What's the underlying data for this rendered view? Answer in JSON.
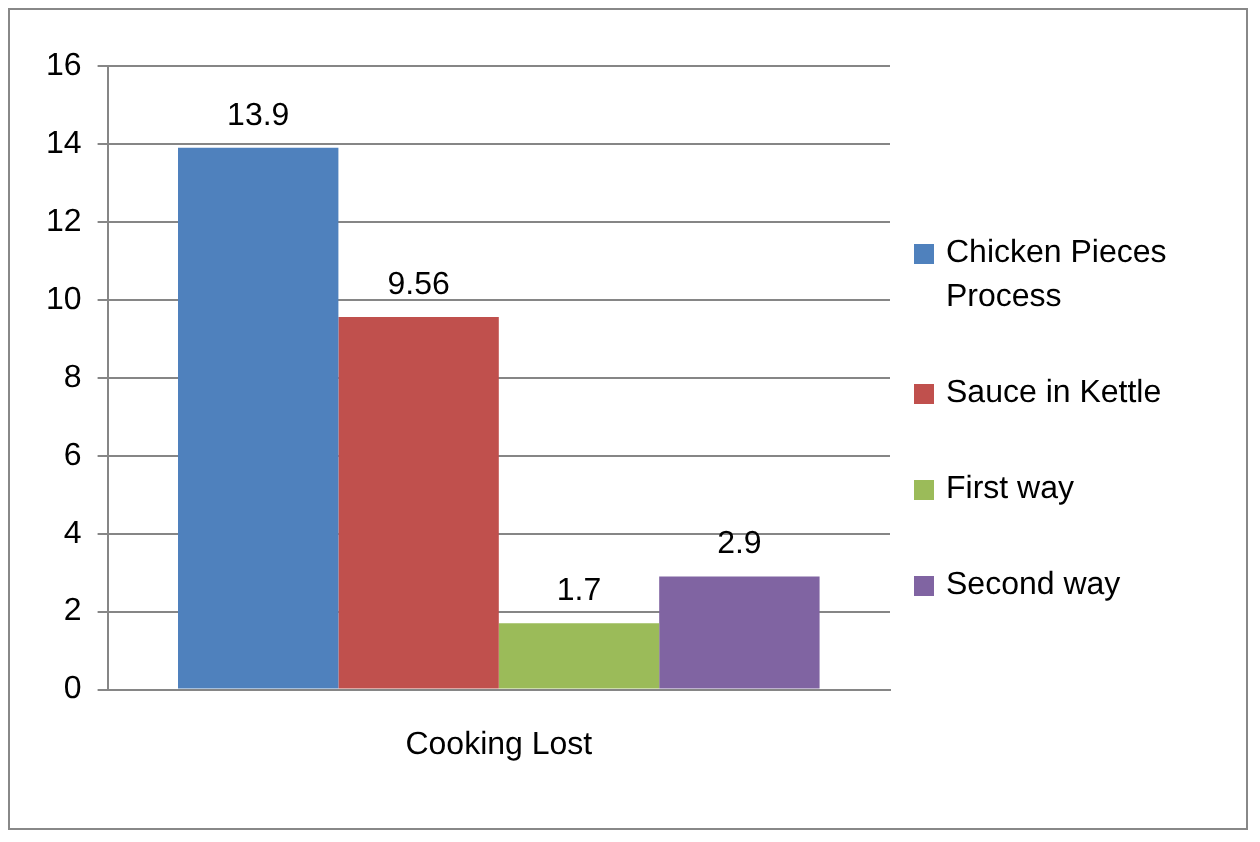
{
  "chart_data": {
    "type": "bar",
    "categories": [
      "Cooking Lost"
    ],
    "series": [
      {
        "name": "Chicken Pieces Process",
        "color": "#4f81bd",
        "values": [
          13.9
        ]
      },
      {
        "name": "Sauce in Kettle",
        "color": "#c0504d",
        "values": [
          9.56
        ]
      },
      {
        "name": "First way",
        "color": "#9bbb59",
        "values": [
          1.7
        ]
      },
      {
        "name": "Second way",
        "color": "#8064a2",
        "values": [
          2.9
        ]
      }
    ],
    "ylim": [
      0,
      16
    ],
    "yticks": [
      0,
      2,
      4,
      6,
      8,
      10,
      12,
      14,
      16
    ],
    "grid": "y",
    "legend": "right",
    "data_labels": true
  }
}
